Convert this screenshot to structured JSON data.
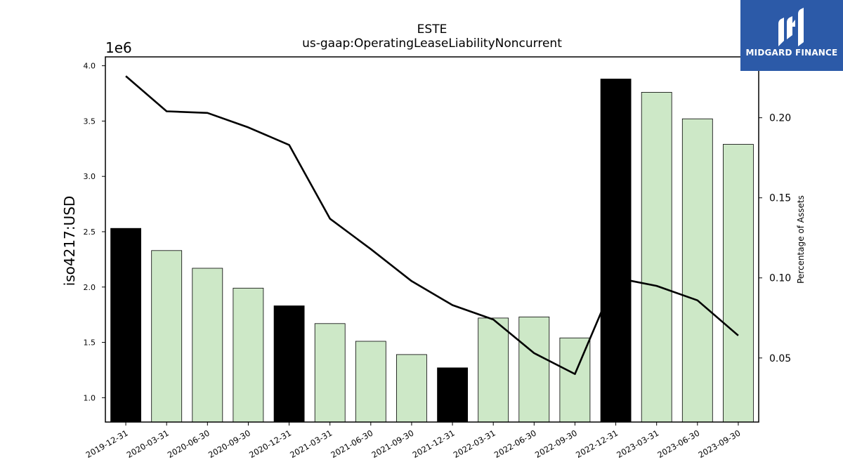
{
  "logo": {
    "text": "MIDGARD FINANCE",
    "color": "#2c5aa8"
  },
  "chart_data": {
    "type": "bar",
    "title": "ESTE",
    "subtitle": "us-gaap:OperatingLeaseLiabilityNoncurrent",
    "ylabel": "iso4217:USD",
    "y_multiplier_label": "1e6",
    "y2label": "Percentage of Assets",
    "ylim": [
      0.78,
      4.08
    ],
    "y2lim": [
      0.01,
      0.238
    ],
    "yticks": [
      "1.0",
      "1.5",
      "2.0",
      "2.5",
      "3.0",
      "3.5",
      "4.0"
    ],
    "y2ticks": [
      "0.05",
      "0.10",
      "0.15",
      "0.20"
    ],
    "categories": [
      "2019-12-31",
      "2020-03-31",
      "2020-06-30",
      "2020-09-30",
      "2020-12-31",
      "2021-03-31",
      "2021-06-30",
      "2021-09-30",
      "2021-12-31",
      "2022-03-31",
      "2022-06-30",
      "2022-09-30",
      "2022-12-31",
      "2023-03-31",
      "2023-06-30",
      "2023-09-30"
    ],
    "series": [
      {
        "values": [
          2.53,
          2.33,
          2.17,
          1.99,
          1.83,
          1.67,
          1.51,
          1.39,
          1.27,
          1.72,
          1.73,
          1.54,
          3.88,
          3.76,
          3.52,
          3.29
        ],
        "highlight": [
          true,
          false,
          false,
          false,
          true,
          false,
          false,
          false,
          true,
          false,
          false,
          false,
          true,
          false,
          false,
          false
        ],
        "color": "#cde8c7",
        "highlight_color": "#000000",
        "axis": "left"
      },
      {
        "type": "line",
        "values": [
          0.226,
          0.204,
          0.203,
          0.194,
          0.183,
          0.137,
          0.118,
          0.098,
          0.083,
          0.074,
          0.053,
          0.04,
          0.1,
          0.095,
          0.086,
          0.064
        ],
        "color": "#000000",
        "axis": "right"
      }
    ]
  }
}
